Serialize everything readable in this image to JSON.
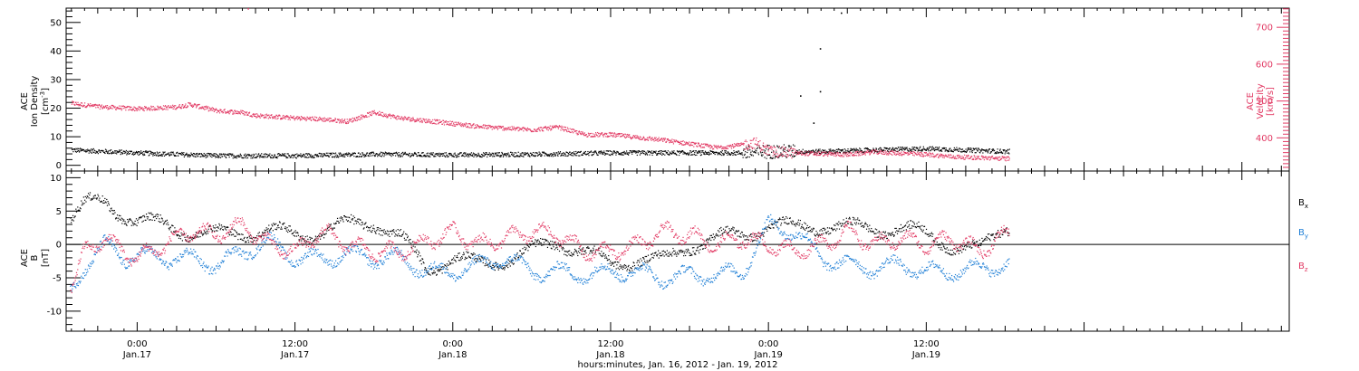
{
  "chart_data": [
    {
      "type": "scatter",
      "panel": "plasma",
      "ylabel_left": [
        "ACE",
        "Ion Density",
        "[cm^-3]"
      ],
      "ylabel_right": [
        "ACE",
        "Velocity",
        "[km/s]"
      ],
      "ylim_left": [
        -2,
        55
      ],
      "ylim_right": [
        310,
        752
      ],
      "yticks_left": [
        0,
        10,
        20,
        30,
        40,
        50
      ],
      "yticks_right": [
        400,
        500,
        600,
        700
      ],
      "xlim_hours": [
        -5.4,
        87.6
      ],
      "data_end_hours": 66.3,
      "series": [
        {
          "name": "ACE Ion Density",
          "color": "#000000",
          "x_hours": [
            -5,
            0,
            6,
            12,
            18,
            24,
            30,
            36,
            42,
            46,
            48,
            52,
            56,
            60,
            63,
            66
          ],
          "values": [
            5.5,
            4.5,
            3.5,
            3.5,
            4,
            3.8,
            4,
            4.5,
            4.5,
            4.5,
            5,
            5,
            5.5,
            6,
            5.5,
            5
          ]
        },
        {
          "name": "ACE Velocity",
          "color": "#e23a64",
          "x_hours": [
            -5,
            -3,
            0,
            3,
            4,
            6,
            8,
            9,
            12,
            14,
            16,
            18,
            20,
            24,
            26,
            30,
            32,
            34,
            36,
            40,
            42,
            44,
            46,
            47,
            48,
            50,
            54,
            56,
            60,
            62,
            66
          ],
          "values": [
            495,
            486,
            480,
            485,
            492,
            475,
            470,
            462,
            455,
            452,
            446,
            470,
            455,
            440,
            432,
            423,
            430,
            410,
            410,
            395,
            385,
            375,
            382,
            388,
            365,
            360,
            356,
            363,
            356,
            350,
            345
          ]
        }
      ],
      "outliers_density": [
        {
          "x_hours": 53.5,
          "value": 53.5
        },
        {
          "x_hours": 51.9,
          "value": 41
        },
        {
          "x_hours": 51.9,
          "value": 26
        },
        {
          "x_hours": 50.4,
          "value": 24.5
        },
        {
          "x_hours": 51.4,
          "value": 15
        }
      ],
      "outliers_velocity": [
        {
          "x_hours": 8.4,
          "value": 752
        }
      ]
    },
    {
      "type": "scatter",
      "panel": "magnetic-field",
      "ylabel_left": [
        "ACE",
        "B",
        "[nT]"
      ],
      "ylim": [
        -13,
        11
      ],
      "yticks": [
        -10,
        -5,
        0,
        5,
        10
      ],
      "zero_line": true,
      "xlim_hours": [
        -5.4,
        87.6
      ],
      "data_end_hours": 66.3,
      "legend_placement": "right",
      "legend": [
        {
          "label": "B",
          "sub": "x",
          "color": "#000000"
        },
        {
          "label": "B",
          "sub": "y",
          "color": "#1f7fd6"
        },
        {
          "label": "B",
          "sub": "z",
          "color": "#e23a64"
        }
      ],
      "series": [
        {
          "name": "Bx",
          "color": "#000000",
          "x_hours": [
            -5,
            -4,
            -2.5,
            -1,
            0,
            2,
            4,
            6,
            8,
            10,
            12,
            14,
            16,
            18,
            20,
            22,
            24,
            26,
            28,
            30,
            32,
            34,
            36,
            38,
            40,
            42,
            44,
            46,
            48,
            50,
            52,
            54,
            56,
            58,
            60,
            62,
            64,
            66
          ],
          "values": [
            4,
            6,
            6.5,
            4.5,
            3.5,
            3,
            2,
            1.5,
            2,
            2,
            1.5,
            2,
            3,
            3.5,
            1,
            -3.5,
            -2,
            -3,
            -2,
            -1,
            0.5,
            -1,
            -3,
            -2,
            -2.5,
            0,
            1,
            1.5,
            3,
            2.5,
            3,
            2.5,
            2.5,
            2.5,
            1.5,
            0,
            -1,
            3
          ]
        },
        {
          "name": "By",
          "color": "#1f7fd6",
          "x_hours": [
            -5,
            -4,
            -2.5,
            -1,
            0,
            2,
            4,
            6,
            8,
            10,
            12,
            14,
            16,
            18,
            20,
            22,
            24,
            26,
            28,
            30,
            32,
            34,
            36,
            38,
            40,
            42,
            44,
            46,
            48,
            50,
            52,
            54,
            56,
            58,
            60,
            62,
            64,
            66
          ],
          "values": [
            -7,
            -3,
            0,
            -2,
            -1.5,
            -2,
            -2,
            -3,
            -1,
            0.5,
            -2,
            -2,
            -1.5,
            -2,
            -2,
            -4,
            -4,
            -3,
            -2,
            -4,
            -4,
            -4.5,
            -4,
            -4,
            -5,
            -4.5,
            -4.5,
            -4,
            3,
            2,
            -2,
            -3,
            -3.5,
            -3,
            -4,
            -4,
            -3.5,
            -3
          ]
        },
        {
          "name": "Bz",
          "color": "#e23a64",
          "x_hours": [
            -5,
            -4,
            -2.5,
            -1,
            0,
            2,
            4,
            6,
            8,
            10,
            12,
            14,
            16,
            18,
            20,
            22,
            24,
            26,
            28,
            30,
            32,
            34,
            36,
            38,
            40,
            42,
            44,
            46,
            48,
            50,
            52,
            54,
            56,
            58,
            60,
            62,
            64,
            66
          ],
          "values": [
            -6,
            -1,
            1,
            -1,
            -2,
            0,
            2,
            1.5,
            3,
            0,
            -1,
            2,
            0,
            -1,
            -1,
            0.5,
            2,
            0,
            1,
            2,
            1.5,
            -1,
            -1,
            0,
            2,
            1.5,
            0,
            1,
            0,
            -1,
            0,
            2,
            0,
            1,
            0,
            1,
            -1,
            1.5
          ]
        }
      ]
    }
  ],
  "x_axis": {
    "ticks": [
      {
        "time": "0:00",
        "date": "Jan.17",
        "hours": 0
      },
      {
        "time": "12:00",
        "date": "Jan.17",
        "hours": 12
      },
      {
        "time": "0:00",
        "date": "Jan.18",
        "hours": 24
      },
      {
        "time": "12:00",
        "date": "Jan.18",
        "hours": 36
      },
      {
        "time": "0:00",
        "date": "Jan.19",
        "hours": 48
      },
      {
        "time": "12:00",
        "date": "Jan.19",
        "hours": 60
      }
    ],
    "title": "hours:minutes, Jan. 16, 2012 - Jan. 19, 2012"
  }
}
